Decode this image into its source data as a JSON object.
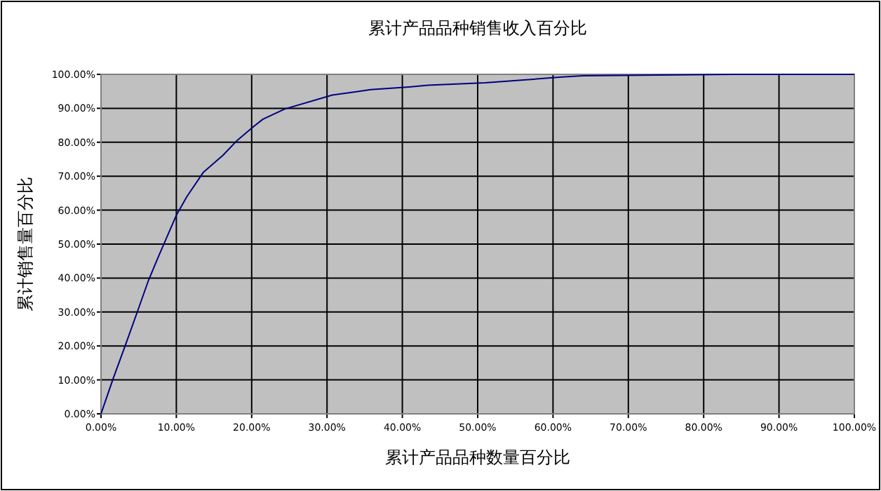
{
  "chart_data": {
    "type": "line",
    "title": "累计产品品种销售收入百分比",
    "xlabel": "累计产品品种数量百分比",
    "ylabel": "累计销售量百分比",
    "series": [
      {
        "color": "#000080",
        "x": [
          0,
          1.6,
          3.2,
          4.75,
          6.3,
          7.6,
          10,
          11.4,
          13.6,
          16.2,
          18.1,
          20.3,
          21.5,
          24.4,
          30.7,
          35.8,
          40.9,
          43.4,
          51,
          61.2,
          64,
          84.2,
          100
        ],
        "values": [
          0,
          10.3,
          20,
          29.6,
          39.3,
          46.2,
          58.5,
          64,
          71.2,
          76.2,
          80.6,
          84.7,
          86.8,
          89.8,
          93.9,
          95.5,
          96.3,
          96.8,
          97.5,
          99.2,
          99.6,
          100,
          100
        ]
      }
    ],
    "xlim": [
      0,
      100
    ],
    "ylim": [
      0,
      100
    ],
    "xticks": [
      {
        "value": 0,
        "label": "0.00%"
      },
      {
        "value": 10,
        "label": "10.00%"
      },
      {
        "value": 20,
        "label": "20.00%"
      },
      {
        "value": 30,
        "label": "30.00%"
      },
      {
        "value": 40,
        "label": "40.00%"
      },
      {
        "value": 50,
        "label": "50.00%"
      },
      {
        "value": 60,
        "label": "60.00%"
      },
      {
        "value": 70,
        "label": "70.00%"
      },
      {
        "value": 80,
        "label": "80.00%"
      },
      {
        "value": 90,
        "label": "90.00%"
      },
      {
        "value": 100,
        "label": "100.00%"
      }
    ],
    "yticks": [
      {
        "value": 0,
        "label": "0.00%"
      },
      {
        "value": 10,
        "label": "10.00%"
      },
      {
        "value": 20,
        "label": "20.00%"
      },
      {
        "value": 30,
        "label": "30.00%"
      },
      {
        "value": 40,
        "label": "40.00%"
      },
      {
        "value": 50,
        "label": "50.00%"
      },
      {
        "value": 60,
        "label": "60.00%"
      },
      {
        "value": 70,
        "label": "70.00%"
      },
      {
        "value": 80,
        "label": "80.00%"
      },
      {
        "value": 90,
        "label": "90.00%"
      },
      {
        "value": 100,
        "label": "100.00%"
      }
    ],
    "grid": true,
    "marker": "none",
    "line_style": "solid"
  }
}
